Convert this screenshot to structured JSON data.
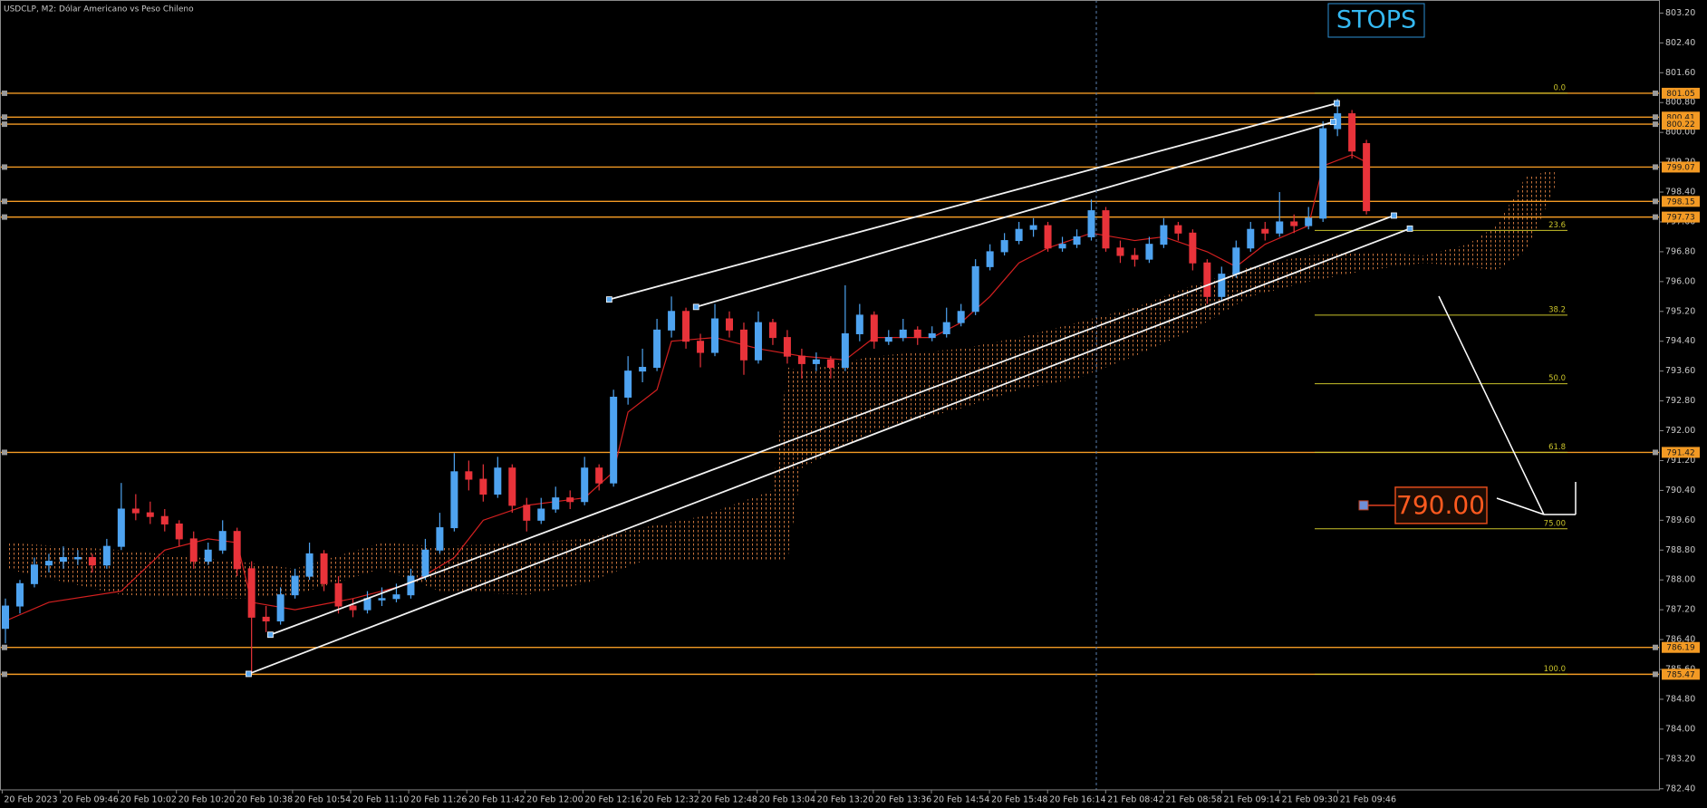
{
  "chart_data": {
    "type": "candlestick",
    "title": "USDCLP, M2:  Dólar Americano vs Peso Chileno",
    "categories": [
      "20 Feb 2023",
      "20 Feb 09:46",
      "20 Feb 10:02",
      "20 Feb 10:20",
      "20 Feb 10:38",
      "20 Feb 10:54",
      "20 Feb 11:10",
      "20 Feb 11:26",
      "20 Feb 11:42",
      "20 Feb 12:00",
      "20 Feb 12:16",
      "20 Feb 12:32",
      "20 Feb 12:48",
      "20 Feb 13:04",
      "20 Feb 13:20",
      "20 Feb 13:36",
      "20 Feb 14:54",
      "20 Feb 15:48",
      "20 Feb 16:14",
      "21 Feb 08:42",
      "21 Feb 08:58",
      "21 Feb 09:14",
      "21 Feb 09:30",
      "21 Feb 09:46"
    ],
    "ohlc": [
      [
        786.7,
        787.5,
        786.3,
        787.3
      ],
      [
        787.3,
        788.0,
        787.1,
        787.9
      ],
      [
        787.9,
        788.6,
        787.8,
        788.4
      ],
      [
        788.4,
        788.7,
        788.2,
        788.5
      ],
      [
        788.5,
        788.9,
        788.3,
        788.6
      ],
      [
        788.6,
        788.8,
        788.4,
        788.6
      ],
      [
        788.6,
        788.7,
        788.2,
        788.4
      ],
      [
        788.4,
        789.1,
        788.3,
        788.9
      ],
      [
        788.9,
        790.6,
        788.8,
        789.9
      ],
      [
        789.9,
        790.3,
        789.6,
        789.8
      ],
      [
        789.8,
        790.1,
        789.5,
        789.7
      ],
      [
        789.7,
        789.9,
        789.3,
        789.5
      ],
      [
        789.5,
        789.6,
        788.9,
        789.1
      ],
      [
        789.1,
        789.3,
        788.3,
        788.5
      ],
      [
        788.5,
        789.0,
        788.4,
        788.8
      ],
      [
        788.8,
        789.6,
        788.7,
        789.3
      ],
      [
        789.3,
        789.4,
        788.1,
        788.3
      ],
      [
        788.3,
        788.5,
        785.5,
        787.0
      ],
      [
        787.0,
        787.3,
        786.6,
        786.9
      ],
      [
        786.9,
        787.8,
        786.8,
        787.6
      ],
      [
        787.6,
        788.3,
        787.5,
        788.1
      ],
      [
        788.1,
        789.0,
        788.0,
        788.7
      ],
      [
        788.7,
        788.8,
        787.7,
        787.9
      ],
      [
        787.9,
        788.1,
        787.1,
        787.3
      ],
      [
        787.3,
        787.5,
        787.0,
        787.2
      ],
      [
        787.2,
        787.7,
        787.1,
        787.5
      ],
      [
        787.5,
        787.8,
        787.3,
        787.5
      ],
      [
        787.5,
        787.9,
        787.4,
        787.6
      ],
      [
        787.6,
        788.3,
        787.5,
        788.1
      ],
      [
        788.1,
        789.1,
        788.0,
        788.8
      ],
      [
        788.8,
        789.8,
        788.7,
        789.4
      ],
      [
        789.4,
        791.4,
        789.3,
        790.9
      ],
      [
        790.9,
        791.2,
        790.4,
        790.7
      ],
      [
        790.7,
        791.1,
        790.1,
        790.3
      ],
      [
        790.3,
        791.3,
        790.2,
        791.0
      ],
      [
        791.0,
        791.1,
        789.8,
        790.0
      ],
      [
        790.0,
        790.2,
        789.3,
        789.6
      ],
      [
        789.6,
        790.2,
        789.5,
        789.9
      ],
      [
        789.9,
        790.5,
        789.8,
        790.2
      ],
      [
        790.2,
        790.4,
        789.9,
        790.1
      ],
      [
        790.1,
        791.3,
        790.0,
        791.0
      ],
      [
        791.0,
        791.1,
        790.4,
        790.6
      ],
      [
        790.6,
        793.1,
        790.5,
        792.9
      ],
      [
        792.9,
        794.0,
        792.7,
        793.6
      ],
      [
        793.6,
        794.2,
        793.3,
        793.7
      ],
      [
        793.7,
        795.0,
        793.6,
        794.7
      ],
      [
        794.7,
        795.6,
        794.5,
        795.2
      ],
      [
        795.2,
        795.3,
        794.2,
        794.4
      ],
      [
        794.4,
        794.6,
        793.7,
        794.1
      ],
      [
        794.1,
        795.4,
        794.0,
        795.0
      ],
      [
        795.0,
        795.2,
        794.5,
        794.7
      ],
      [
        794.7,
        794.9,
        793.5,
        793.9
      ],
      [
        793.9,
        795.2,
        793.8,
        794.9
      ],
      [
        794.9,
        795.0,
        794.3,
        794.5
      ],
      [
        794.5,
        794.7,
        793.8,
        794.0
      ],
      [
        794.0,
        794.2,
        793.4,
        793.8
      ],
      [
        793.8,
        794.1,
        793.6,
        793.9
      ],
      [
        793.9,
        794.0,
        793.4,
        793.7
      ],
      [
        793.7,
        795.9,
        793.6,
        794.6
      ],
      [
        794.6,
        795.4,
        794.4,
        795.1
      ],
      [
        795.1,
        795.2,
        794.2,
        794.4
      ],
      [
        794.4,
        794.7,
        794.3,
        794.5
      ],
      [
        794.5,
        795.0,
        794.4,
        794.7
      ],
      [
        794.7,
        794.8,
        794.3,
        794.5
      ],
      [
        794.5,
        794.8,
        794.4,
        794.6
      ],
      [
        794.6,
        795.3,
        794.5,
        794.9
      ],
      [
        794.9,
        795.4,
        794.8,
        795.2
      ],
      [
        795.2,
        796.6,
        795.1,
        796.4
      ],
      [
        796.4,
        797.0,
        796.3,
        796.8
      ],
      [
        796.8,
        797.3,
        796.7,
        797.1
      ],
      [
        797.1,
        797.6,
        797.0,
        797.4
      ],
      [
        797.4,
        797.7,
        797.2,
        797.5
      ],
      [
        797.5,
        797.6,
        796.8,
        796.9
      ],
      [
        796.9,
        797.2,
        796.8,
        797.0
      ],
      [
        797.0,
        797.4,
        796.9,
        797.2
      ],
      [
        797.2,
        798.2,
        797.1,
        797.9
      ],
      [
        797.9,
        798.0,
        796.8,
        796.9
      ],
      [
        796.9,
        797.1,
        796.5,
        796.7
      ],
      [
        796.7,
        796.9,
        796.4,
        796.6
      ],
      [
        796.6,
        797.2,
        796.5,
        797.0
      ],
      [
        797.0,
        797.7,
        796.9,
        797.5
      ],
      [
        797.5,
        797.6,
        797.1,
        797.3
      ],
      [
        797.3,
        797.4,
        796.3,
        796.5
      ],
      [
        796.5,
        796.6,
        795.4,
        795.6
      ],
      [
        795.6,
        796.4,
        795.5,
        796.2
      ],
      [
        796.2,
        797.1,
        796.1,
        796.9
      ],
      [
        796.9,
        797.6,
        796.8,
        797.4
      ],
      [
        797.4,
        797.6,
        797.1,
        797.3
      ],
      [
        797.3,
        798.4,
        797.2,
        797.6
      ],
      [
        797.6,
        797.8,
        797.3,
        797.5
      ],
      [
        797.5,
        798.0,
        797.4,
        797.7
      ],
      [
        797.7,
        800.3,
        797.6,
        800.1
      ],
      [
        800.1,
        800.9,
        799.9,
        800.5
      ],
      [
        800.5,
        800.6,
        799.3,
        799.5
      ],
      [
        799.7,
        799.8,
        797.8,
        797.9
      ]
    ],
    "tenkan": {
      "x": [
        0,
        3,
        8,
        11,
        14,
        16,
        17,
        20,
        24,
        28,
        31,
        33,
        36,
        40,
        42,
        43,
        45,
        46,
        49,
        52,
        55,
        58,
        60,
        64,
        66,
        68,
        70,
        72,
        75,
        78,
        80,
        83,
        85,
        87,
        90,
        91,
        93,
        94
      ],
      "y": [
        786.9,
        787.4,
        787.7,
        788.8,
        789.1,
        789.0,
        787.4,
        787.2,
        787.5,
        787.9,
        788.6,
        789.6,
        790.0,
        790.2,
        790.9,
        792.5,
        793.1,
        794.4,
        794.5,
        794.2,
        794.0,
        793.9,
        794.5,
        794.5,
        794.9,
        795.6,
        796.5,
        796.9,
        797.3,
        797.1,
        797.2,
        796.8,
        796.4,
        797.0,
        797.5,
        799.1,
        799.4,
        799.2
      ]
    },
    "cloud": {
      "x": [
        0,
        8,
        16,
        20,
        26,
        30,
        36,
        40,
        44,
        48,
        53,
        54,
        55,
        60,
        66,
        70,
        74,
        78,
        82,
        86,
        90,
        94,
        98,
        101,
        103,
        105,
        107
      ],
      "upper": [
        789.0,
        788.8,
        788.5,
        788.3,
        789.0,
        788.9,
        789.0,
        789.1,
        789.4,
        789.7,
        790.4,
        793.7,
        793.6,
        794.0,
        794.2,
        794.5,
        794.9,
        795.3,
        795.9,
        796.4,
        796.7,
        796.8,
        796.7,
        797.0,
        797.5,
        798.8,
        799.0
      ],
      "lower": [
        788.3,
        787.6,
        787.5,
        787.6,
        788.3,
        787.7,
        787.6,
        787.9,
        788.5,
        788.5,
        788.5,
        788.5,
        791.0,
        792.0,
        792.6,
        793.1,
        793.4,
        794.0,
        794.7,
        795.6,
        796.0,
        796.3,
        796.5,
        796.4,
        796.3,
        796.8,
        798.5
      ]
    },
    "channels": [
      {
        "x": [
          41.7,
          91.95
        ],
        "y": [
          795.52,
          800.78
        ]
      },
      {
        "x": [
          47.7,
          91.7
        ],
        "y": [
          795.32,
          800.28
        ]
      },
      {
        "x": [
          18.3,
          95.9
        ],
        "y": [
          786.53,
          797.77
        ]
      },
      {
        "x": [
          16.8,
          97.0
        ],
        "y": [
          785.48,
          797.42
        ]
      }
    ],
    "levels": [
      801.05,
      800.41,
      800.22,
      799.07,
      798.15,
      797.73,
      791.42,
      786.19,
      785.47
    ],
    "fib_labels": [
      "0.0",
      "23.6",
      "38.2",
      "50.0",
      "61.8",
      "75.00",
      "100.0"
    ],
    "fib_prices": [
      801.05,
      797.37,
      795.1,
      793.26,
      791.42,
      789.37,
      785.47
    ],
    "stops_label": "STOPS",
    "target": {
      "value": 790,
      "label": "790.00"
    },
    "ylim": [
      782.37,
      803.55
    ],
    "yticks": [
      {
        "value": 803.2,
        "label": "803.20"
      },
      {
        "value": 802.4,
        "label": "802.40"
      },
      {
        "value": 801.6,
        "label": "801.60"
      },
      {
        "value": 800.8,
        "label": "800.80"
      },
      {
        "value": 800,
        "label": "800.00"
      },
      {
        "value": 799.2,
        "label": "799.20"
      },
      {
        "value": 798.4,
        "label": "798.40"
      },
      {
        "value": 797.6,
        "label": "797.60"
      },
      {
        "value": 796.8,
        "label": "796.80"
      },
      {
        "value": 796,
        "label": "796.00"
      },
      {
        "value": 795.2,
        "label": "795.20"
      },
      {
        "value": 794.4,
        "label": "794.40"
      },
      {
        "value": 793.6,
        "label": "793.60"
      },
      {
        "value": 792.8,
        "label": "792.80"
      },
      {
        "value": 792,
        "label": "792.00"
      },
      {
        "value": 791.2,
        "label": "791.20"
      },
      {
        "value": 790.4,
        "label": "790.40"
      },
      {
        "value": 789.6,
        "label": "789.60"
      },
      {
        "value": 788.8,
        "label": "788.80"
      },
      {
        "value": 788,
        "label": "788.00"
      },
      {
        "value": 787.2,
        "label": "787.20"
      },
      {
        "value": 786.4,
        "label": "786.40"
      },
      {
        "value": 785.6,
        "label": "785.60"
      },
      {
        "value": 784.8,
        "label": "784.80"
      },
      {
        "value": 784,
        "label": "784.00"
      },
      {
        "value": 783.2,
        "label": "783.20"
      },
      {
        "value": 782.4,
        "label": "782.40"
      }
    ],
    "colors": {
      "up": "#4ea3f0",
      "down": "#e8333a",
      "level": "#f39a24",
      "fib": "#c9c22a",
      "cloud": "#c8733c",
      "tenkan": "#d42020",
      "channel": "#f2f2f2"
    }
  }
}
